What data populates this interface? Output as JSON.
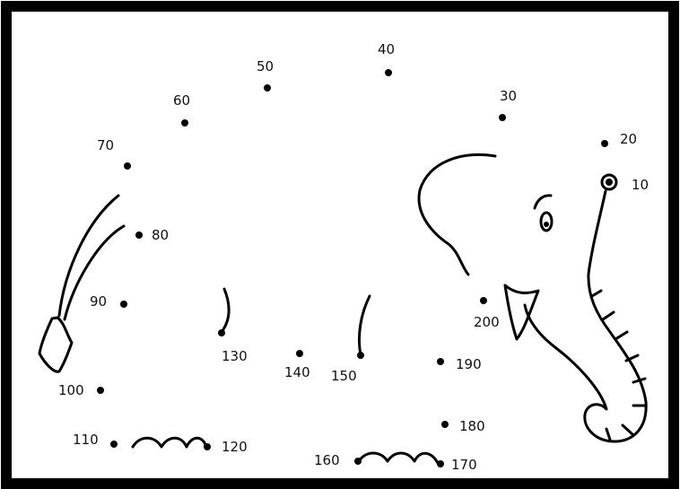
{
  "puzzle": {
    "dots": [
      {
        "label": "10"
      },
      {
        "label": "20"
      },
      {
        "label": "30"
      },
      {
        "label": "40"
      },
      {
        "label": "50"
      },
      {
        "label": "60"
      },
      {
        "label": "70"
      },
      {
        "label": "80"
      },
      {
        "label": "90"
      },
      {
        "label": "100"
      },
      {
        "label": "110"
      },
      {
        "label": "120"
      },
      {
        "label": "130"
      },
      {
        "label": "140"
      },
      {
        "label": "150"
      },
      {
        "label": "160"
      },
      {
        "label": "170"
      },
      {
        "label": "180"
      },
      {
        "label": "190"
      },
      {
        "label": "200"
      }
    ]
  }
}
